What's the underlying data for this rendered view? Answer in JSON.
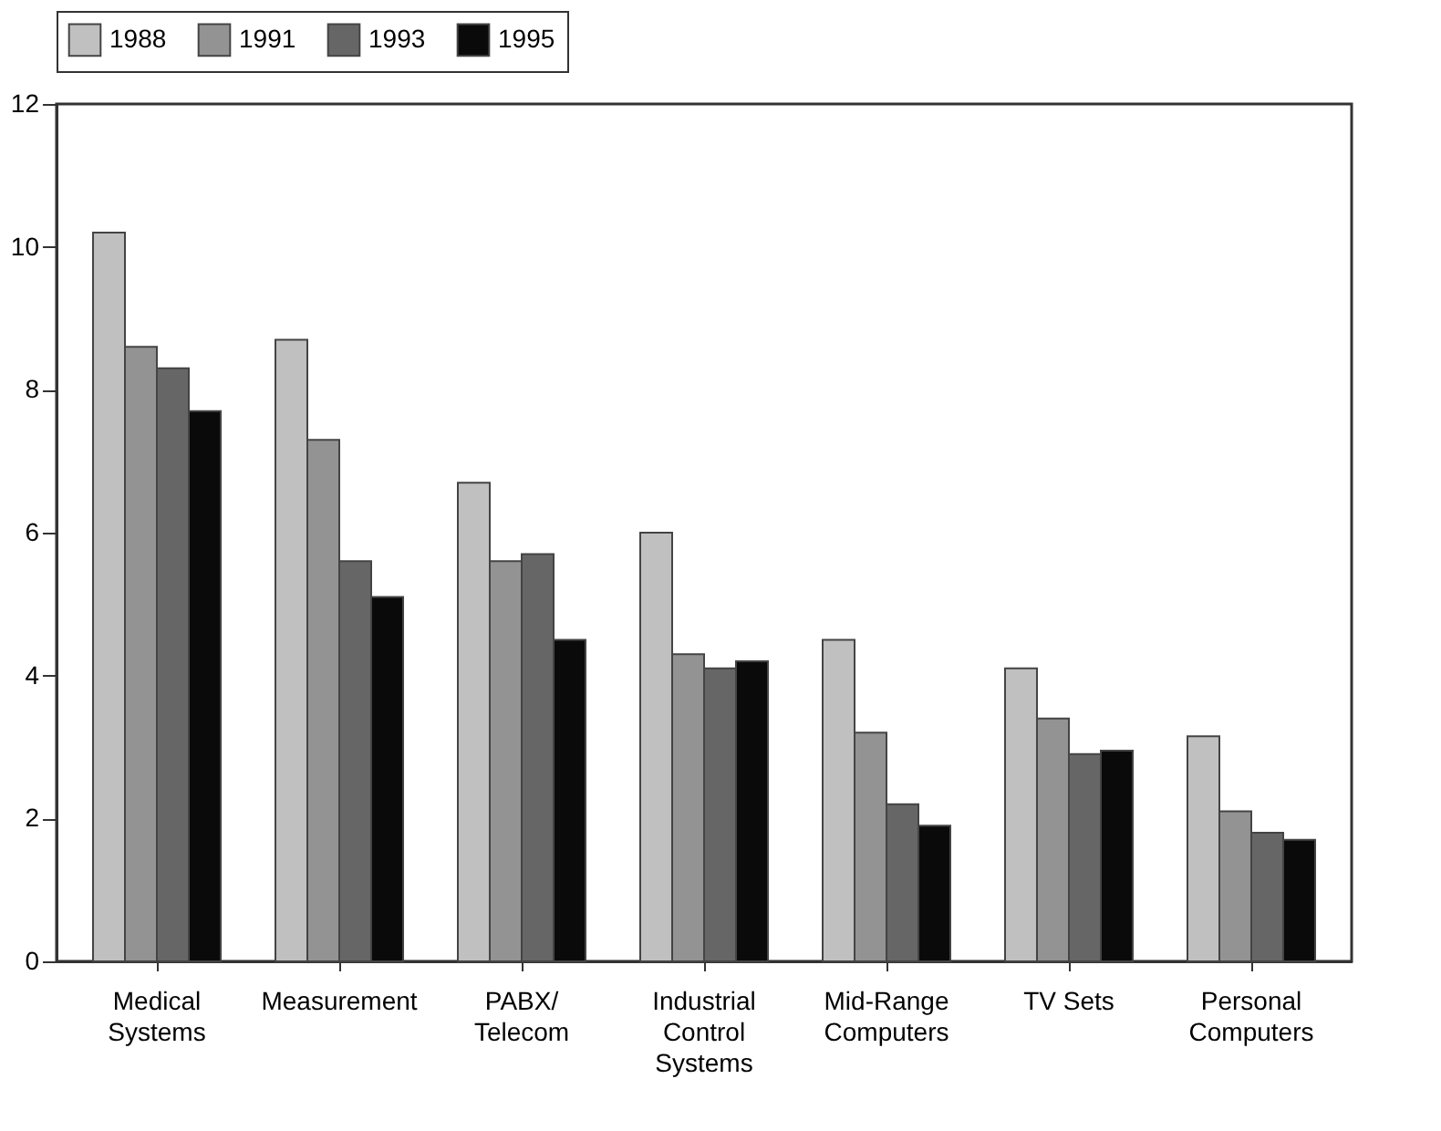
{
  "chart_data": {
    "type": "bar",
    "categories": [
      "Medical\nSystems",
      "Measurement",
      "PABX/\nTelecom",
      "Industrial\nControl\nSystems",
      "Mid-Range\nComputers",
      "TV Sets",
      "Personal\nComputers"
    ],
    "series": [
      {
        "name": "1988",
        "color": "#c0c0c0",
        "values": [
          10.2,
          8.7,
          6.7,
          6.0,
          4.5,
          4.1,
          3.15
        ]
      },
      {
        "name": "1991",
        "color": "#939393",
        "values": [
          8.6,
          7.3,
          5.6,
          4.3,
          3.2,
          3.4,
          2.1
        ]
      },
      {
        "name": "1993",
        "color": "#666666",
        "values": [
          8.3,
          5.6,
          5.7,
          4.1,
          2.2,
          2.9,
          1.8
        ]
      },
      {
        "name": "1995",
        "color": "#0a0a0a",
        "values": [
          7.7,
          5.1,
          4.5,
          4.2,
          1.9,
          2.95,
          1.7
        ]
      }
    ],
    "ylim": [
      0,
      12
    ],
    "yticks": [
      0,
      2,
      4,
      6,
      8,
      10,
      12
    ],
    "grid": false,
    "legend": "top"
  }
}
